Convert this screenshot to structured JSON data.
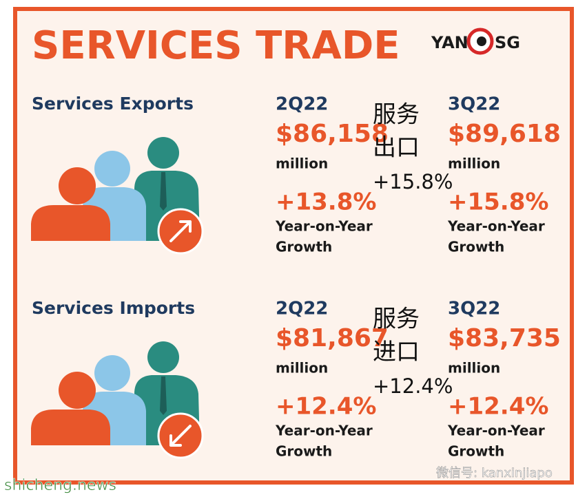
{
  "header": {
    "title": "SERVICES TRADE",
    "logo": {
      "left": "YAN",
      "right": "SG"
    }
  },
  "sections": [
    {
      "heading": "Services Exports",
      "periods": [
        {
          "label": "2Q22",
          "amount": "$86,158",
          "unit": "million",
          "growth": "+13.8%",
          "growth_label": [
            "Year-on-Year",
            "Growth"
          ]
        },
        {
          "label": "3Q22",
          "amount": "$89,618",
          "unit": "million",
          "growth": "+15.8%",
          "growth_label": [
            "Year-on-Year",
            "Growth"
          ]
        }
      ],
      "overlay": {
        "lines": [
          "服务",
          "出口"
        ],
        "growth": "+15.8%"
      }
    },
    {
      "heading": "Services Imports",
      "periods": [
        {
          "label": "2Q22",
          "amount": "$81,867",
          "unit": "million",
          "growth": "+12.4%",
          "growth_label": [
            "Year-on-Year",
            "Growth"
          ]
        },
        {
          "label": "3Q22",
          "amount": "$83,735",
          "unit": "million",
          "growth": "+12.4%",
          "growth_label": [
            "Year-on-Year",
            "Growth"
          ]
        }
      ],
      "overlay": {
        "lines": [
          "服务",
          "进口"
        ],
        "growth": "+12.4%"
      }
    }
  ],
  "watermarks": {
    "left": "shicheng.news",
    "right": "微信号: kanxinjiapo"
  }
}
